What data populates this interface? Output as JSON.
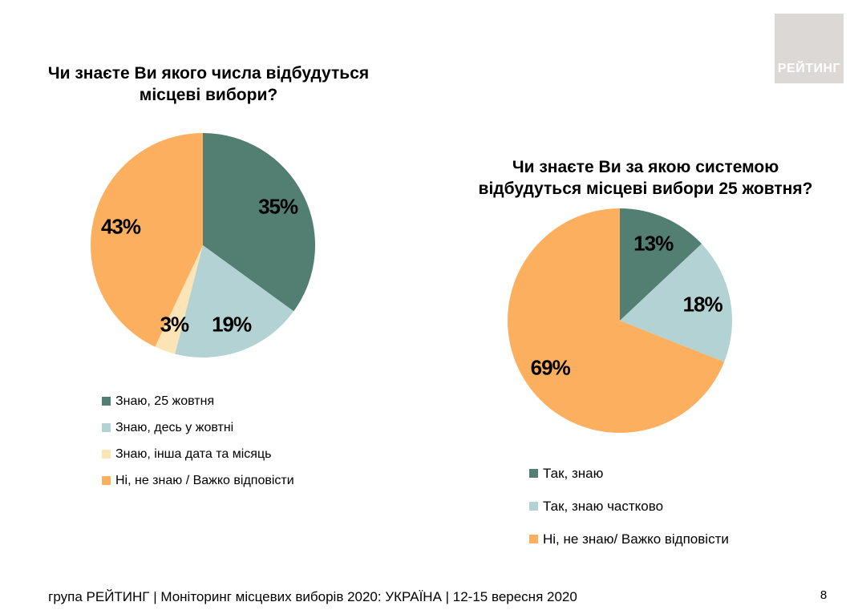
{
  "slide": {
    "logo_text": "РЕЙТИНГ",
    "footer_text": "група РЕЙТИНГ | Моніторинг місцевих виборів 2020: УКРАЇНА | 12-15 вересня 2020",
    "page_number": "8"
  },
  "chart_data": [
    {
      "type": "pie",
      "title": "Чи знаєте Ви якого числа відбудуться місцеві вибори?",
      "title_lines": [
        "Чи знаєте Ви якого числа відбудуться",
        "місцеві вибори?"
      ],
      "labels": [
        "Знаю, 25 жовтня",
        "Знаю, десь у жовтні",
        "Знаю, інша дата та місяць",
        "Ні, не знаю / Важко відповісти"
      ],
      "values": [
        35,
        19,
        3,
        43
      ],
      "value_labels": [
        "35%",
        "19%",
        "3%",
        "43%"
      ],
      "colors": [
        "#527F72",
        "#B3D2D4",
        "#FCE4B6",
        "#FCB05F"
      ],
      "start_angle_deg": 0,
      "direction": "clockwise",
      "legend_position": "bottom-left"
    },
    {
      "type": "pie",
      "title": "Чи знаєте Ви за якою системою відбудуться місцеві вибори 25 жовтня?",
      "title_lines": [
        "Чи знаєте Ви за якою системою",
        "відбудуться місцеві вибори 25 жовтня?"
      ],
      "labels": [
        "Так, знаю",
        "Так, знаю частково",
        "Ні, не знаю/ Важко відповісти"
      ],
      "values": [
        13,
        18,
        69
      ],
      "value_labels": [
        "13%",
        "18%",
        "69%"
      ],
      "colors": [
        "#527F72",
        "#B3D2D4",
        "#FCB05F"
      ],
      "start_angle_deg": 0,
      "direction": "clockwise",
      "legend_position": "bottom-left"
    }
  ]
}
